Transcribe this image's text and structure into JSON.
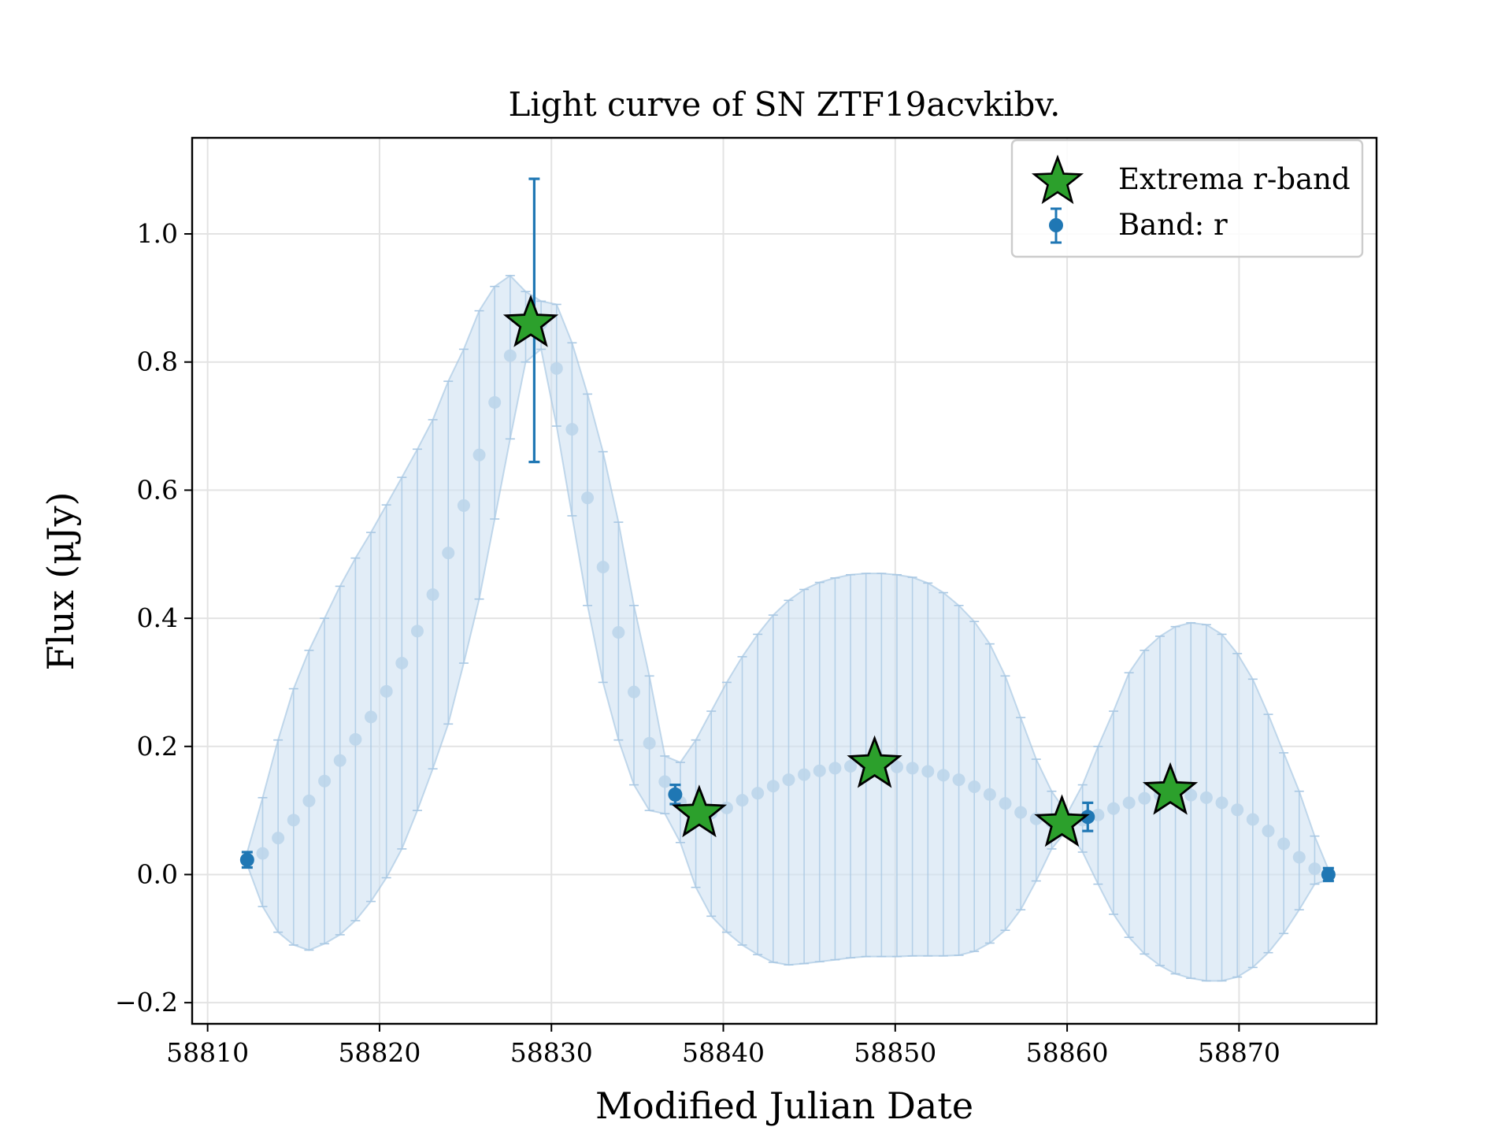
{
  "chart_data": {
    "type": "scatter",
    "title": "Light curve of SN ZTF19acvkibv.",
    "xlabel": "Modified Julian Date",
    "ylabel": "Flux (μJy)",
    "xlim": [
      58809.1,
      58878.0
    ],
    "ylim": [
      -0.233,
      1.15
    ],
    "grid": true,
    "legend_position": "top-right",
    "x_ticks": [
      58810,
      58820,
      58830,
      58840,
      58850,
      58860,
      58870
    ],
    "x_tick_labels": [
      "58810",
      "58820",
      "58830",
      "58840",
      "58850",
      "58860",
      "58870"
    ],
    "y_ticks": [
      -0.2,
      0.0,
      0.2,
      0.4,
      0.6,
      0.8,
      1.0
    ],
    "y_tick_labels": [
      "−0.2",
      "0.0",
      "0.2",
      "0.4",
      "0.6",
      "0.8",
      "1.0"
    ],
    "colors": {
      "observed": "#1f77b4",
      "extrema": "#2ca02c",
      "band_fill": "#cfe1f1",
      "model_point": "#bcd5ea",
      "grid": "#e3e3e3"
    },
    "series": [
      {
        "name": "Band: r",
        "kind": "observed",
        "points": [
          {
            "x": 58812.3,
            "y": 0.023,
            "err": 0.012
          },
          {
            "x": 58829.0,
            "y": 0.865,
            "err": 0.221
          },
          {
            "x": 58837.2,
            "y": 0.125,
            "err": 0.015
          },
          {
            "x": 58861.2,
            "y": 0.09,
            "err": 0.022
          },
          {
            "x": 58875.2,
            "y": 0.0,
            "err": 0.01
          }
        ]
      },
      {
        "name": "Extrema r-band",
        "kind": "extrema",
        "points": [
          {
            "x": 58828.8,
            "y": 0.86
          },
          {
            "x": 58838.6,
            "y": 0.095
          },
          {
            "x": 58848.8,
            "y": 0.172
          },
          {
            "x": 58859.7,
            "y": 0.08
          },
          {
            "x": 58866.0,
            "y": 0.13
          }
        ]
      },
      {
        "kind": "model",
        "points": [
          {
            "x": 58812.3,
            "y": 0.022,
            "lo": 0.015,
            "hi": 0.035
          },
          {
            "x": 58813.2,
            "y": 0.033,
            "lo": -0.05,
            "hi": 0.12
          },
          {
            "x": 58814.1,
            "y": 0.057,
            "lo": -0.09,
            "hi": 0.21
          },
          {
            "x": 58815.0,
            "y": 0.085,
            "lo": -0.11,
            "hi": 0.29
          },
          {
            "x": 58815.9,
            "y": 0.115,
            "lo": -0.118,
            "hi": 0.35
          },
          {
            "x": 58816.8,
            "y": 0.146,
            "lo": -0.108,
            "hi": 0.4
          },
          {
            "x": 58817.7,
            "y": 0.178,
            "lo": -0.094,
            "hi": 0.45
          },
          {
            "x": 58818.6,
            "y": 0.211,
            "lo": -0.072,
            "hi": 0.494
          },
          {
            "x": 58819.5,
            "y": 0.246,
            "lo": -0.042,
            "hi": 0.534
          },
          {
            "x": 58820.4,
            "y": 0.286,
            "lo": -0.005,
            "hi": 0.577
          },
          {
            "x": 58821.3,
            "y": 0.33,
            "lo": 0.04,
            "hi": 0.62
          },
          {
            "x": 58822.2,
            "y": 0.38,
            "lo": 0.1,
            "hi": 0.664
          },
          {
            "x": 58823.1,
            "y": 0.437,
            "lo": 0.165,
            "hi": 0.71
          },
          {
            "x": 58824.0,
            "y": 0.502,
            "lo": 0.235,
            "hi": 0.77
          },
          {
            "x": 58824.9,
            "y": 0.576,
            "lo": 0.33,
            "hi": 0.82
          },
          {
            "x": 58825.8,
            "y": 0.655,
            "lo": 0.43,
            "hi": 0.88
          },
          {
            "x": 58826.7,
            "y": 0.737,
            "lo": 0.555,
            "hi": 0.918
          },
          {
            "x": 58827.6,
            "y": 0.81,
            "lo": 0.68,
            "hi": 0.935
          },
          {
            "x": 58828.5,
            "y": 0.86,
            "lo": 0.8,
            "hi": 0.91
          },
          {
            "x": 58829.4,
            "y": 0.86,
            "lo": 0.82,
            "hi": 0.895
          },
          {
            "x": 58830.3,
            "y": 0.79,
            "lo": 0.7,
            "hi": 0.89
          },
          {
            "x": 58831.2,
            "y": 0.695,
            "lo": 0.56,
            "hi": 0.83
          },
          {
            "x": 58832.1,
            "y": 0.588,
            "lo": 0.42,
            "hi": 0.75
          },
          {
            "x": 58833.0,
            "y": 0.48,
            "lo": 0.3,
            "hi": 0.66
          },
          {
            "x": 58833.9,
            "y": 0.378,
            "lo": 0.21,
            "hi": 0.55
          },
          {
            "x": 58834.8,
            "y": 0.285,
            "lo": 0.14,
            "hi": 0.42
          },
          {
            "x": 58835.7,
            "y": 0.205,
            "lo": 0.1,
            "hi": 0.31
          },
          {
            "x": 58836.6,
            "y": 0.145,
            "lo": 0.095,
            "hi": 0.185
          },
          {
            "x": 58837.5,
            "y": 0.113,
            "lo": 0.05,
            "hi": 0.175
          },
          {
            "x": 58838.4,
            "y": 0.098,
            "lo": -0.02,
            "hi": 0.21
          },
          {
            "x": 58839.3,
            "y": 0.096,
            "lo": -0.065,
            "hi": 0.255
          },
          {
            "x": 58840.2,
            "y": 0.104,
            "lo": -0.09,
            "hi": 0.3
          },
          {
            "x": 58841.1,
            "y": 0.116,
            "lo": -0.11,
            "hi": 0.34
          },
          {
            "x": 58842.0,
            "y": 0.127,
            "lo": -0.125,
            "hi": 0.375
          },
          {
            "x": 58842.9,
            "y": 0.138,
            "lo": -0.137,
            "hi": 0.405
          },
          {
            "x": 58843.8,
            "y": 0.148,
            "lo": -0.141,
            "hi": 0.428
          },
          {
            "x": 58844.7,
            "y": 0.156,
            "lo": -0.139,
            "hi": 0.445
          },
          {
            "x": 58845.6,
            "y": 0.162,
            "lo": -0.136,
            "hi": 0.456
          },
          {
            "x": 58846.5,
            "y": 0.166,
            "lo": -0.133,
            "hi": 0.463
          },
          {
            "x": 58847.4,
            "y": 0.169,
            "lo": -0.13,
            "hi": 0.468
          },
          {
            "x": 58848.3,
            "y": 0.17,
            "lo": -0.128,
            "hi": 0.47
          },
          {
            "x": 58849.2,
            "y": 0.17,
            "lo": -0.128,
            "hi": 0.47
          },
          {
            "x": 58850.1,
            "y": 0.168,
            "lo": -0.128,
            "hi": 0.468
          },
          {
            "x": 58851.0,
            "y": 0.166,
            "lo": -0.127,
            "hi": 0.464
          },
          {
            "x": 58851.9,
            "y": 0.161,
            "lo": -0.127,
            "hi": 0.455
          },
          {
            "x": 58852.8,
            "y": 0.155,
            "lo": -0.127,
            "hi": 0.44
          },
          {
            "x": 58853.7,
            "y": 0.148,
            "lo": -0.126,
            "hi": 0.42
          },
          {
            "x": 58854.6,
            "y": 0.137,
            "lo": -0.12,
            "hi": 0.395
          },
          {
            "x": 58855.5,
            "y": 0.125,
            "lo": -0.107,
            "hi": 0.36
          },
          {
            "x": 58856.4,
            "y": 0.111,
            "lo": -0.087,
            "hi": 0.31
          },
          {
            "x": 58857.3,
            "y": 0.097,
            "lo": -0.055,
            "hi": 0.245
          },
          {
            "x": 58858.2,
            "y": 0.087,
            "lo": -0.01,
            "hi": 0.18
          },
          {
            "x": 58859.1,
            "y": 0.082,
            "lo": 0.04,
            "hi": 0.13
          },
          {
            "x": 58860.0,
            "y": 0.081,
            "lo": 0.07,
            "hi": 0.095
          },
          {
            "x": 58860.9,
            "y": 0.085,
            "lo": 0.035,
            "hi": 0.14
          },
          {
            "x": 58861.8,
            "y": 0.093,
            "lo": -0.015,
            "hi": 0.2
          },
          {
            "x": 58862.7,
            "y": 0.103,
            "lo": -0.062,
            "hi": 0.255
          },
          {
            "x": 58863.6,
            "y": 0.112,
            "lo": -0.098,
            "hi": 0.315
          },
          {
            "x": 58864.5,
            "y": 0.119,
            "lo": -0.124,
            "hi": 0.35
          },
          {
            "x": 58865.4,
            "y": 0.124,
            "lo": -0.142,
            "hi": 0.372
          },
          {
            "x": 58866.3,
            "y": 0.125,
            "lo": -0.155,
            "hi": 0.387
          },
          {
            "x": 58867.2,
            "y": 0.124,
            "lo": -0.162,
            "hi": 0.393
          },
          {
            "x": 58868.1,
            "y": 0.12,
            "lo": -0.166,
            "hi": 0.39
          },
          {
            "x": 58869.0,
            "y": 0.112,
            "lo": -0.166,
            "hi": 0.375
          },
          {
            "x": 58869.9,
            "y": 0.101,
            "lo": -0.16,
            "hi": 0.345
          },
          {
            "x": 58870.8,
            "y": 0.086,
            "lo": -0.145,
            "hi": 0.305
          },
          {
            "x": 58871.7,
            "y": 0.068,
            "lo": -0.122,
            "hi": 0.25
          },
          {
            "x": 58872.6,
            "y": 0.048,
            "lo": -0.092,
            "hi": 0.19
          },
          {
            "x": 58873.5,
            "y": 0.027,
            "lo": -0.055,
            "hi": 0.13
          },
          {
            "x": 58874.4,
            "y": 0.009,
            "lo": -0.015,
            "hi": 0.06
          },
          {
            "x": 58875.2,
            "y": 0.0,
            "lo": -0.008,
            "hi": 0.008
          }
        ]
      }
    ]
  }
}
